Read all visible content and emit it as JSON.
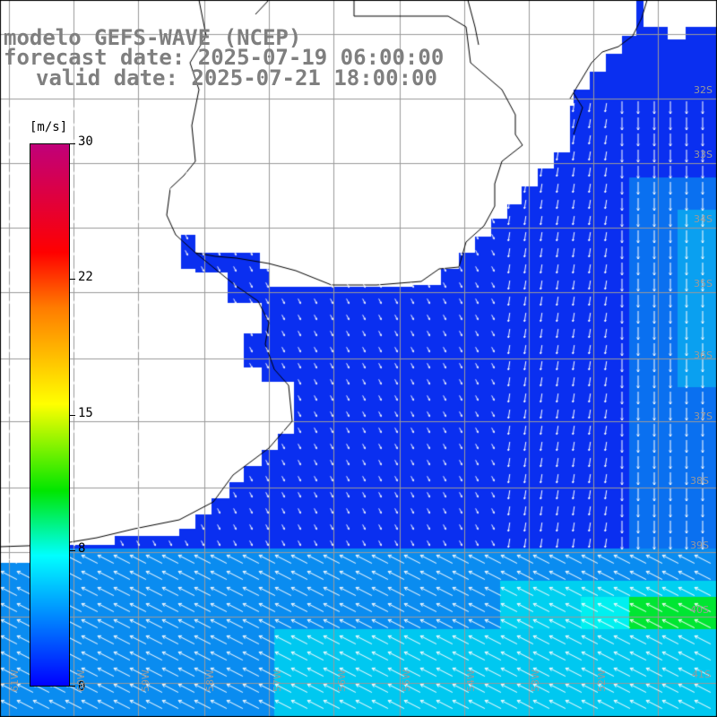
{
  "title": {
    "line1": "modelo GEFS-WAVE (NCEP)",
    "line2": "forecast date: 2025-07-19 06:00:00",
    "line3": "valid date: 2025-07-21 18:00:00",
    "color": "#7f7f7f"
  },
  "colorbar": {
    "units": "[m/s]",
    "ticks": [
      "30",
      "22",
      "15",
      "8",
      "0"
    ],
    "tick_values": [
      30,
      22,
      15,
      8,
      0
    ],
    "min": 0,
    "max": 30
  },
  "lat_labels": [
    "32S",
    "33S",
    "34S",
    "35S",
    "36S",
    "37S",
    "38S",
    "39S",
    "40S",
    "41S"
  ],
  "lon_labels": [
    "61W",
    "60W",
    "59W",
    "58W",
    "57W",
    "56W",
    "55W",
    "54W",
    "53W",
    "52W"
  ],
  "colors": {
    "land": "#ffffff",
    "coast": "#000000",
    "grid": "#9a9a9a",
    "arrow": "#ffffff",
    "calm": "#0a2ff0",
    "moderate": "#0a8cf0",
    "fresh": "#00f0f0",
    "strong": "#00e632"
  }
}
